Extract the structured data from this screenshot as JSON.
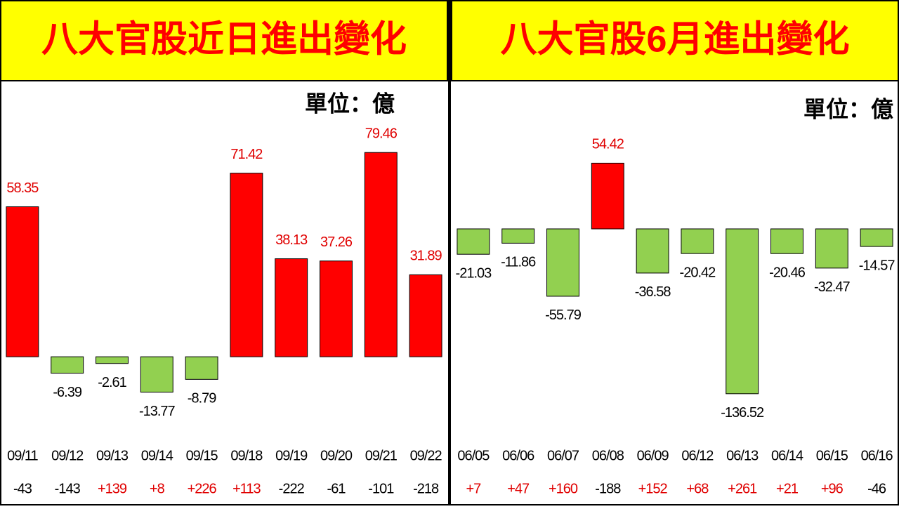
{
  "chart_data": [
    {
      "type": "bar",
      "title": "八大官股近日進出變化",
      "unit_label": "單位：億",
      "categories": [
        "09/11",
        "09/12",
        "09/13",
        "09/14",
        "09/15",
        "09/18",
        "09/19",
        "09/20",
        "09/21",
        "09/22"
      ],
      "values": [
        58.35,
        -6.39,
        -2.61,
        -13.77,
        -8.79,
        71.42,
        38.13,
        37.26,
        79.46,
        31.89
      ],
      "index_changes": [
        -43,
        -143,
        {
          "value": 139,
          "label": "+139"
        },
        {
          "value": 8,
          "label": "+8"
        },
        {
          "value": 226,
          "label": "+226"
        },
        {
          "value": 113,
          "label": "+113"
        },
        -222,
        -61,
        -101,
        -218
      ],
      "colors": {
        "positive": "#ff0000",
        "negative": "#92d050"
      },
      "ylim": [
        -30,
        100
      ]
    },
    {
      "type": "bar",
      "title": "八大官股6月進出變化",
      "unit_label": "單位：億",
      "categories": [
        "06/05",
        "06/06",
        "06/07",
        "06/08",
        "06/09",
        "06/12",
        "06/13",
        "06/14",
        "06/15",
        "06/16"
      ],
      "values": [
        -21.03,
        -11.86,
        -55.79,
        54.42,
        -36.58,
        -20.42,
        -136.52,
        -20.46,
        -32.47,
        -14.57
      ],
      "index_changes": [
        {
          "value": 7,
          "label": "+7"
        },
        {
          "value": 47,
          "label": "+47"
        },
        {
          "value": 160,
          "label": "+160"
        },
        -188,
        {
          "value": 152,
          "label": "+152"
        },
        {
          "value": 68,
          "label": "+68"
        },
        {
          "value": 261,
          "label": "+261"
        },
        {
          "value": 21,
          "label": "+21"
        },
        {
          "value": 96,
          "label": "+96"
        },
        -46
      ],
      "colors": {
        "positive": "#ff0000",
        "negative": "#92d050"
      },
      "ylim": [
        -150,
        100
      ]
    }
  ]
}
